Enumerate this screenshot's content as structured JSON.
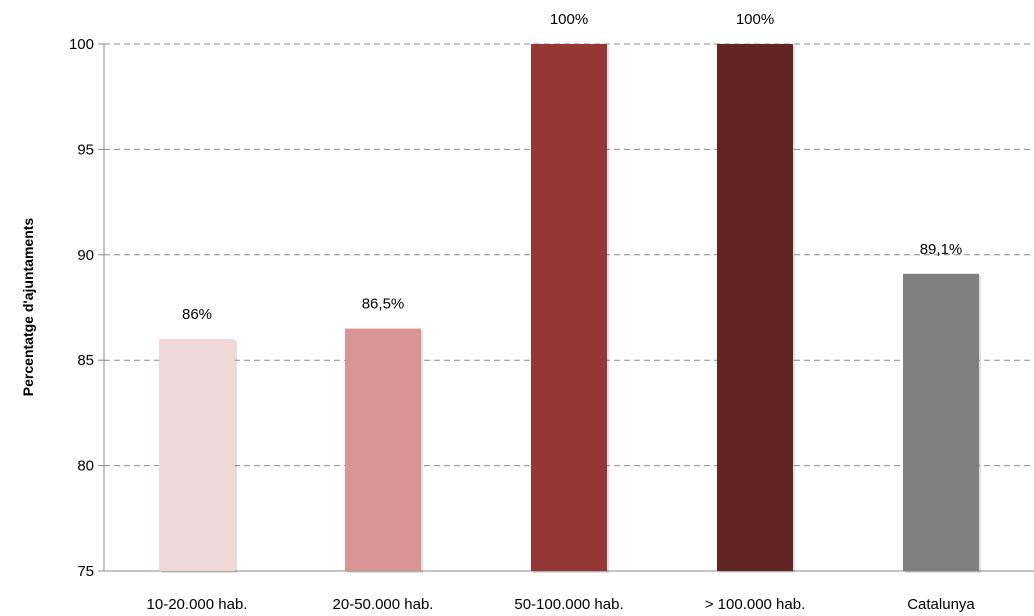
{
  "chart_data": {
    "type": "bar",
    "title": "",
    "xlabel": "",
    "ylabel": "Percentatge d'ajuntaments",
    "ylim": [
      75,
      100
    ],
    "yticks": [
      75,
      80,
      85,
      90,
      95,
      100
    ],
    "grid": true,
    "legend": "none",
    "categories": [
      "10-20.000 hab.",
      "20-50.000 hab.",
      "50-100.000 hab.",
      ">  100.000 hab.",
      "Catalunya"
    ],
    "values": [
      86,
      86.5,
      100,
      100,
      89.1
    ],
    "data_labels": [
      "86%",
      "86,5%",
      "100%",
      "100%",
      "89,1%"
    ],
    "colors": [
      "#f0d8d8",
      "#d99594",
      "#953735",
      "#632523",
      "#808080"
    ]
  }
}
